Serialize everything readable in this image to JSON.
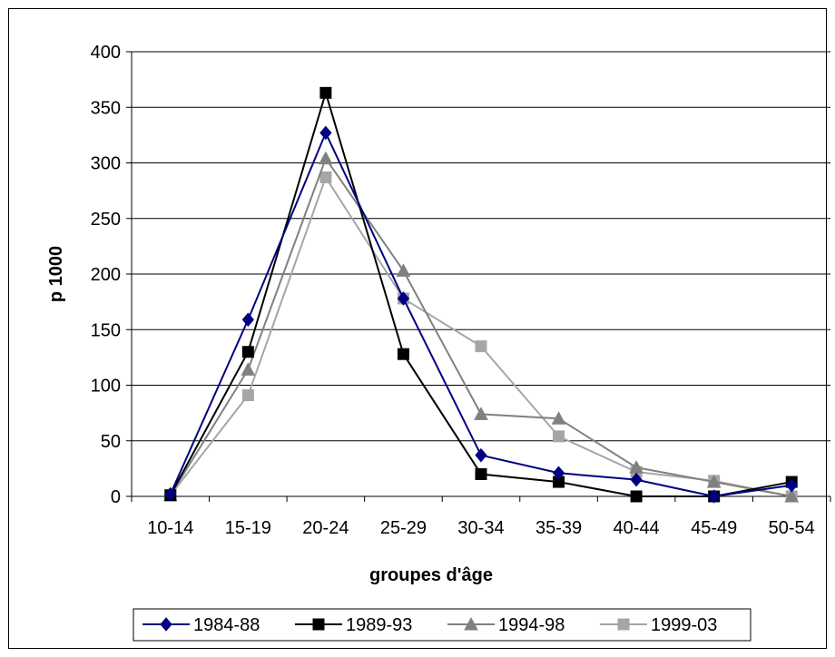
{
  "chart_data": {
    "type": "line",
    "categories": [
      "10-14",
      "15-19",
      "20-24",
      "25-29",
      "30-34",
      "35-39",
      "40-44",
      "45-49",
      "50-54"
    ],
    "series": [
      {
        "name": "1984-88",
        "color": "#000080",
        "marker": "diamond",
        "values": [
          2,
          159,
          327,
          178,
          37,
          21,
          15,
          0,
          10
        ]
      },
      {
        "name": "1989-93",
        "color": "#000000",
        "marker": "square",
        "values": [
          1,
          130,
          363,
          128,
          20,
          13,
          0,
          0,
          13
        ]
      },
      {
        "name": "1994-98",
        "color": "#808080",
        "marker": "triangle",
        "values": [
          1,
          114,
          304,
          203,
          74,
          70,
          26,
          13,
          0
        ]
      },
      {
        "name": "1999-03",
        "color": "#a6a6a6",
        "marker": "square",
        "values": [
          1,
          91,
          287,
          178,
          135,
          54,
          22,
          14,
          0
        ]
      }
    ],
    "xlabel": "groupes d'âge",
    "ylabel": "p 1000",
    "ylim": [
      0,
      400
    ],
    "yticks": [
      0,
      50,
      100,
      150,
      200,
      250,
      300,
      350,
      400
    ],
    "grid": true,
    "legend_position": "bottom"
  }
}
